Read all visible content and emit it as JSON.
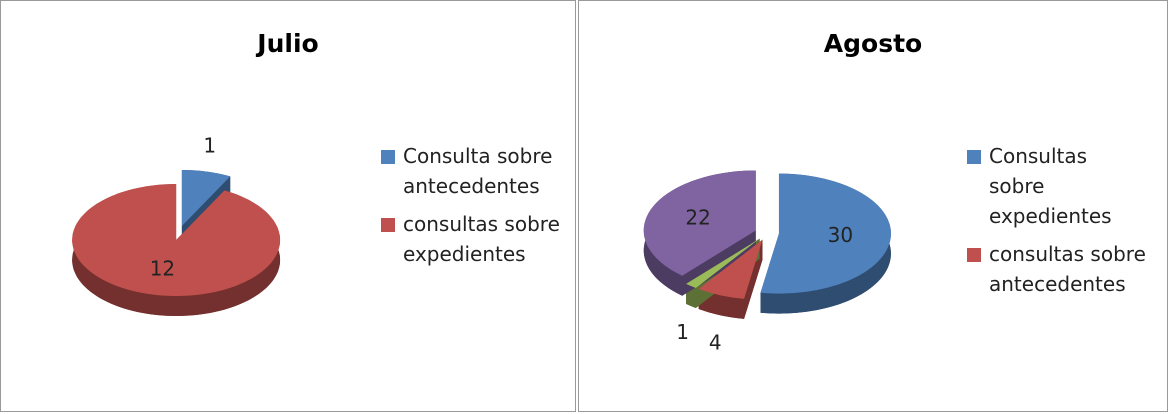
{
  "chart_data": [
    {
      "type": "pie",
      "title": "Julio",
      "categories": [
        "Consulta sobre antecedentes",
        "consultas sobre expedientes"
      ],
      "values": [
        1,
        12
      ],
      "colors": [
        "#4f81bd",
        "#c0504d"
      ]
    },
    {
      "type": "pie",
      "title": "Agosto",
      "categories": [
        "Consultas sobre expedientes",
        "consultas sobre antecedentes",
        null,
        null
      ],
      "values": [
        30,
        4,
        1,
        22
      ],
      "colors": [
        "#4f81bd",
        "#c0504d",
        "#9bbb59",
        "#8064a2"
      ]
    }
  ]
}
